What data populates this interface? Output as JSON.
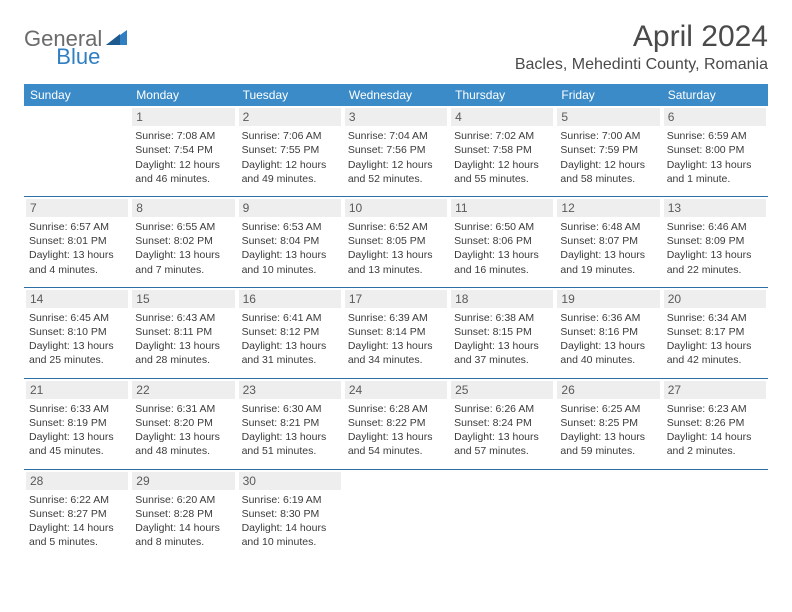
{
  "brand": {
    "part1": "General",
    "part2": "Blue"
  },
  "title": "April 2024",
  "location": "Bacles, Mehedinti County, Romania",
  "colors": {
    "header_bg": "#3b8bc8",
    "header_text": "#ffffff",
    "row_border": "#2f6fa8",
    "daynum_bg": "#eeeeee",
    "logo_blue": "#2f7fc2",
    "logo_gray": "#6b6b6b"
  },
  "weekdays": [
    "Sunday",
    "Monday",
    "Tuesday",
    "Wednesday",
    "Thursday",
    "Friday",
    "Saturday"
  ],
  "weeks": [
    [
      {
        "day": "",
        "lines": []
      },
      {
        "day": "1",
        "lines": [
          "Sunrise: 7:08 AM",
          "Sunset: 7:54 PM",
          "Daylight: 12 hours",
          "and 46 minutes."
        ]
      },
      {
        "day": "2",
        "lines": [
          "Sunrise: 7:06 AM",
          "Sunset: 7:55 PM",
          "Daylight: 12 hours",
          "and 49 minutes."
        ]
      },
      {
        "day": "3",
        "lines": [
          "Sunrise: 7:04 AM",
          "Sunset: 7:56 PM",
          "Daylight: 12 hours",
          "and 52 minutes."
        ]
      },
      {
        "day": "4",
        "lines": [
          "Sunrise: 7:02 AM",
          "Sunset: 7:58 PM",
          "Daylight: 12 hours",
          "and 55 minutes."
        ]
      },
      {
        "day": "5",
        "lines": [
          "Sunrise: 7:00 AM",
          "Sunset: 7:59 PM",
          "Daylight: 12 hours",
          "and 58 minutes."
        ]
      },
      {
        "day": "6",
        "lines": [
          "Sunrise: 6:59 AM",
          "Sunset: 8:00 PM",
          "Daylight: 13 hours",
          "and 1 minute."
        ]
      }
    ],
    [
      {
        "day": "7",
        "lines": [
          "Sunrise: 6:57 AM",
          "Sunset: 8:01 PM",
          "Daylight: 13 hours",
          "and 4 minutes."
        ]
      },
      {
        "day": "8",
        "lines": [
          "Sunrise: 6:55 AM",
          "Sunset: 8:02 PM",
          "Daylight: 13 hours",
          "and 7 minutes."
        ]
      },
      {
        "day": "9",
        "lines": [
          "Sunrise: 6:53 AM",
          "Sunset: 8:04 PM",
          "Daylight: 13 hours",
          "and 10 minutes."
        ]
      },
      {
        "day": "10",
        "lines": [
          "Sunrise: 6:52 AM",
          "Sunset: 8:05 PM",
          "Daylight: 13 hours",
          "and 13 minutes."
        ]
      },
      {
        "day": "11",
        "lines": [
          "Sunrise: 6:50 AM",
          "Sunset: 8:06 PM",
          "Daylight: 13 hours",
          "and 16 minutes."
        ]
      },
      {
        "day": "12",
        "lines": [
          "Sunrise: 6:48 AM",
          "Sunset: 8:07 PM",
          "Daylight: 13 hours",
          "and 19 minutes."
        ]
      },
      {
        "day": "13",
        "lines": [
          "Sunrise: 6:46 AM",
          "Sunset: 8:09 PM",
          "Daylight: 13 hours",
          "and 22 minutes."
        ]
      }
    ],
    [
      {
        "day": "14",
        "lines": [
          "Sunrise: 6:45 AM",
          "Sunset: 8:10 PM",
          "Daylight: 13 hours",
          "and 25 minutes."
        ]
      },
      {
        "day": "15",
        "lines": [
          "Sunrise: 6:43 AM",
          "Sunset: 8:11 PM",
          "Daylight: 13 hours",
          "and 28 minutes."
        ]
      },
      {
        "day": "16",
        "lines": [
          "Sunrise: 6:41 AM",
          "Sunset: 8:12 PM",
          "Daylight: 13 hours",
          "and 31 minutes."
        ]
      },
      {
        "day": "17",
        "lines": [
          "Sunrise: 6:39 AM",
          "Sunset: 8:14 PM",
          "Daylight: 13 hours",
          "and 34 minutes."
        ]
      },
      {
        "day": "18",
        "lines": [
          "Sunrise: 6:38 AM",
          "Sunset: 8:15 PM",
          "Daylight: 13 hours",
          "and 37 minutes."
        ]
      },
      {
        "day": "19",
        "lines": [
          "Sunrise: 6:36 AM",
          "Sunset: 8:16 PM",
          "Daylight: 13 hours",
          "and 40 minutes."
        ]
      },
      {
        "day": "20",
        "lines": [
          "Sunrise: 6:34 AM",
          "Sunset: 8:17 PM",
          "Daylight: 13 hours",
          "and 42 minutes."
        ]
      }
    ],
    [
      {
        "day": "21",
        "lines": [
          "Sunrise: 6:33 AM",
          "Sunset: 8:19 PM",
          "Daylight: 13 hours",
          "and 45 minutes."
        ]
      },
      {
        "day": "22",
        "lines": [
          "Sunrise: 6:31 AM",
          "Sunset: 8:20 PM",
          "Daylight: 13 hours",
          "and 48 minutes."
        ]
      },
      {
        "day": "23",
        "lines": [
          "Sunrise: 6:30 AM",
          "Sunset: 8:21 PM",
          "Daylight: 13 hours",
          "and 51 minutes."
        ]
      },
      {
        "day": "24",
        "lines": [
          "Sunrise: 6:28 AM",
          "Sunset: 8:22 PM",
          "Daylight: 13 hours",
          "and 54 minutes."
        ]
      },
      {
        "day": "25",
        "lines": [
          "Sunrise: 6:26 AM",
          "Sunset: 8:24 PM",
          "Daylight: 13 hours",
          "and 57 minutes."
        ]
      },
      {
        "day": "26",
        "lines": [
          "Sunrise: 6:25 AM",
          "Sunset: 8:25 PM",
          "Daylight: 13 hours",
          "and 59 minutes."
        ]
      },
      {
        "day": "27",
        "lines": [
          "Sunrise: 6:23 AM",
          "Sunset: 8:26 PM",
          "Daylight: 14 hours",
          "and 2 minutes."
        ]
      }
    ],
    [
      {
        "day": "28",
        "lines": [
          "Sunrise: 6:22 AM",
          "Sunset: 8:27 PM",
          "Daylight: 14 hours",
          "and 5 minutes."
        ]
      },
      {
        "day": "29",
        "lines": [
          "Sunrise: 6:20 AM",
          "Sunset: 8:28 PM",
          "Daylight: 14 hours",
          "and 8 minutes."
        ]
      },
      {
        "day": "30",
        "lines": [
          "Sunrise: 6:19 AM",
          "Sunset: 8:30 PM",
          "Daylight: 14 hours",
          "and 10 minutes."
        ]
      },
      {
        "day": "",
        "lines": []
      },
      {
        "day": "",
        "lines": []
      },
      {
        "day": "",
        "lines": []
      },
      {
        "day": "",
        "lines": []
      }
    ]
  ]
}
